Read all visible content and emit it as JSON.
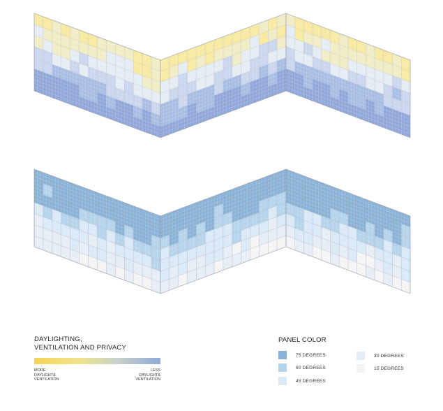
{
  "legend": {
    "title_line1": "DAYLIGHTING,",
    "title_line2": "VENTILATION AND PRIVACY",
    "left_label": [
      "MORE",
      "DAYLIGHT&",
      "VENTILATION"
    ],
    "right_label": [
      "LESS",
      "DAYLIGHT&",
      "VENTILATION"
    ]
  },
  "panel_color": {
    "title": "PANEL COLOR",
    "items": [
      {
        "label": "75 DEGREES",
        "color": "#8ab2d6"
      },
      {
        "label": "60 DEGREES",
        "color": "#b5d3ea"
      },
      {
        "label": "45 DEGREES",
        "color": "#d9e9f6"
      },
      {
        "label": "30 DEGREES",
        "color": "#e7edf6"
      },
      {
        "label": "15 DEGREES",
        "color": "#f4f4f6"
      }
    ]
  },
  "colors": {
    "daylight_scale": [
      "#f7e9a0",
      "#f0ecc4",
      "#e5ecf4",
      "#c9d6ee",
      "#a8bde3",
      "#8fa7da"
    ],
    "panel_scale": [
      "#f4f4f6",
      "#e7edf6",
      "#d9e9f6",
      "#b5d3ea",
      "#8ab2d6"
    ],
    "grid_line": "#b9bcc4"
  }
}
